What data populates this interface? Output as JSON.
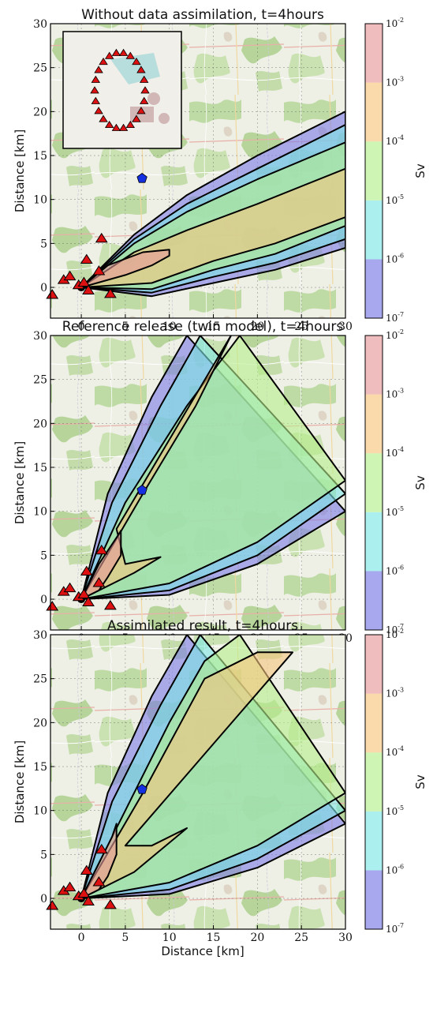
{
  "chart_data": [
    {
      "type": "contour",
      "title": "Without data assimilation, t=4hours",
      "xlabel": "",
      "ylabel": "Distance [km]",
      "xlim": [
        -3.5,
        30
      ],
      "ylim": [
        -3.5,
        30
      ],
      "x_ticks": [
        "0",
        "5",
        "10",
        "15",
        "20",
        "25",
        "30"
      ],
      "y_ticks": [
        "0",
        "5",
        "10",
        "15",
        "20",
        "25",
        "30"
      ],
      "background": "street map",
      "inset_map": "zoomed view of the facility with a ring of monitoring stations",
      "colorbar": {
        "label": "Sv",
        "scale": "log",
        "levels": [
          "10^-7",
          "10^-6",
          "10^-5",
          "10^-4",
          "10^-3",
          "10^-2"
        ],
        "colors": [
          "#7a7ae6",
          "#7fe6e6",
          "#b5ef8c",
          "#f7c47d",
          "#e69a9a"
        ]
      },
      "stations_red_triangles": [
        [
          -3.3,
          -0.9
        ],
        [
          -2,
          0.8
        ],
        [
          -1.3,
          1.2
        ],
        [
          -0.3,
          0.2
        ],
        [
          0.3,
          0.5
        ],
        [
          0.6,
          3.1
        ],
        [
          0.8,
          -0.4
        ],
        [
          2,
          1.8
        ],
        [
          2.3,
          5.5
        ],
        [
          3.3,
          -0.8
        ]
      ],
      "blue_pentagon": [
        6.9,
        12.4
      ]
    },
    {
      "type": "contour",
      "title": "Reference release (twin model), t=4hours",
      "xlabel": "",
      "ylabel": "Distance [km]",
      "xlim": [
        -3.5,
        30
      ],
      "ylim": [
        -3.5,
        30
      ],
      "x_ticks": [
        "0",
        "5",
        "10",
        "15",
        "20",
        "25",
        "30"
      ],
      "y_ticks": [
        "0",
        "5",
        "10",
        "15",
        "20",
        "25",
        "30"
      ],
      "background": "street map",
      "colorbar": {
        "label": "Sv",
        "scale": "log",
        "levels": [
          "10^-7",
          "10^-6",
          "10^-5",
          "10^-4",
          "10^-3",
          "10^-2"
        ],
        "colors": [
          "#7a7ae6",
          "#7fe6e6",
          "#b5ef8c",
          "#f7c47d",
          "#e69a9a"
        ]
      },
      "stations_red_triangles": [
        [
          -3.3,
          -0.9
        ],
        [
          -2,
          0.8
        ],
        [
          -1.3,
          1.2
        ],
        [
          -0.3,
          0.2
        ],
        [
          0.3,
          0.5
        ],
        [
          0.6,
          3.1
        ],
        [
          0.8,
          -0.4
        ],
        [
          2,
          1.8
        ],
        [
          2.3,
          5.5
        ],
        [
          3.3,
          -0.8
        ]
      ],
      "blue_pentagon": [
        6.9,
        12.4
      ]
    },
    {
      "type": "contour",
      "title": "Assimilated result, t=4hours",
      "xlabel": "Distance [km]",
      "ylabel": "Distance [km]",
      "xlim": [
        -3.5,
        30
      ],
      "ylim": [
        -3.5,
        30
      ],
      "x_ticks": [
        "0",
        "5",
        "10",
        "15",
        "20",
        "25",
        "30"
      ],
      "y_ticks": [
        "0",
        "5",
        "10",
        "15",
        "20",
        "25",
        "30"
      ],
      "background": "street map",
      "colorbar": {
        "label": "Sv",
        "scale": "log",
        "levels": [
          "10^-7",
          "10^-6",
          "10^-5",
          "10^-4",
          "10^-3",
          "10^-2"
        ],
        "colors": [
          "#7a7ae6",
          "#7fe6e6",
          "#b5ef8c",
          "#f7c47d",
          "#e69a9a"
        ]
      },
      "stations_red_triangles": [
        [
          -3.3,
          -0.9
        ],
        [
          -2,
          0.8
        ],
        [
          -1.3,
          1.2
        ],
        [
          -0.3,
          0.2
        ],
        [
          0.3,
          0.5
        ],
        [
          0.6,
          3.1
        ],
        [
          0.8,
          -0.4
        ],
        [
          2,
          1.8
        ],
        [
          2.3,
          5.5
        ],
        [
          3.3,
          -0.8
        ]
      ],
      "blue_pentagon": [
        6.9,
        12.4
      ]
    }
  ]
}
